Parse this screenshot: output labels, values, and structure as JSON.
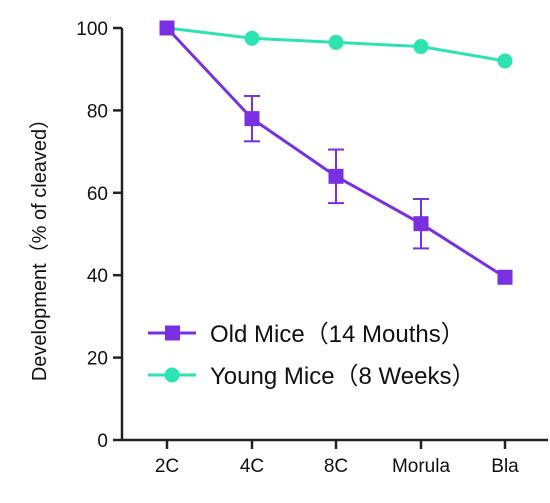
{
  "chart_data": {
    "type": "line",
    "title": "",
    "xlabel": "",
    "ylabel": "Development（% of cleaved）",
    "categories": [
      "2C",
      "4C",
      "8C",
      "Morula",
      "Bla"
    ],
    "ylim": [
      0,
      100
    ],
    "yticks": [
      0,
      20,
      40,
      60,
      80,
      100
    ],
    "ytick_labels": [
      "0",
      "20",
      "40",
      "60",
      "80",
      "100"
    ],
    "grid": false,
    "legend_position": "bottom-right",
    "series": [
      {
        "name": "Old Mice（14 Mouths）",
        "values": [
          100,
          78,
          64,
          52.5,
          39.5
        ],
        "error": [
          0,
          5.5,
          6.5,
          6,
          0
        ],
        "color": "#7a2fe0",
        "marker": "square"
      },
      {
        "name": "Young Mice（8 Weeks）",
        "values": [
          100,
          97.5,
          96.5,
          95.5,
          92
        ],
        "error": [
          0,
          0,
          0,
          0,
          0
        ],
        "color": "#2de3b1",
        "marker": "circle"
      }
    ]
  }
}
